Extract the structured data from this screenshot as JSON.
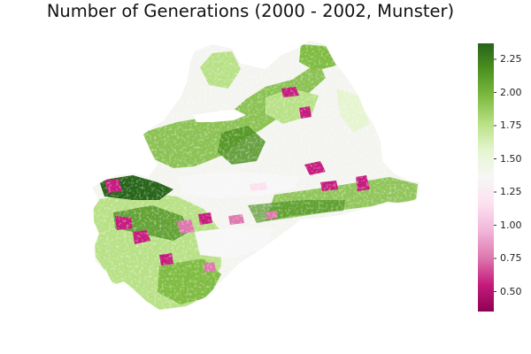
{
  "title": "Number of Generations (2000 - 2002, Munster)",
  "colorbar": {
    "min": 0.35,
    "max": 2.37,
    "ticks": [
      {
        "value": 2.25,
        "label": "2.25"
      },
      {
        "value": 2.0,
        "label": "2.00"
      },
      {
        "value": 1.75,
        "label": "1.75"
      },
      {
        "value": 1.5,
        "label": "1.50"
      },
      {
        "value": 1.25,
        "label": "1.25"
      },
      {
        "value": 1.0,
        "label": "1.00"
      },
      {
        "value": 0.75,
        "label": "0.75"
      },
      {
        "value": 0.5,
        "label": "0.50"
      }
    ],
    "colormap": "PiYG",
    "colors": [
      "#8e0152",
      "#c51b7d",
      "#de77ae",
      "#f1b6da",
      "#fde0ef",
      "#f7f7f7",
      "#e6f5d0",
      "#b8e186",
      "#7fbc41",
      "#4d9221",
      "#276419"
    ]
  },
  "chart_data": {
    "type": "heatmap",
    "title": "Number of Generations (2000 - 2002, Munster)",
    "xlabel": "",
    "ylabel": "",
    "value_range": [
      0.35,
      2.37
    ],
    "grid": false,
    "legend": "colorbar-right"
  }
}
